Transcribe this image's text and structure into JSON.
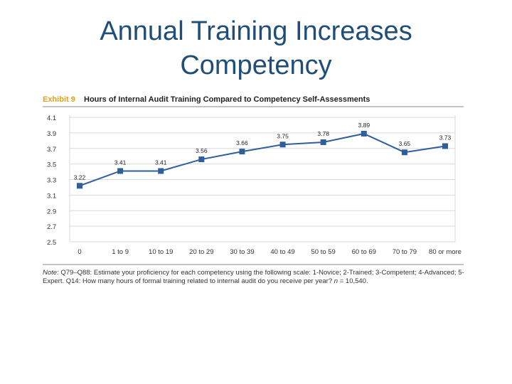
{
  "slide": {
    "title_line1": "Annual Training Increases",
    "title_line2": "Competency"
  },
  "chart_data": {
    "type": "line",
    "exhibit_label": "Exhibit 9",
    "title": "Hours of Internal Audit Training Compared to Competency Self-Assessments",
    "categories": [
      "0",
      "1 to 9",
      "10 to 19",
      "20 to 29",
      "30 to 39",
      "40 to 49",
      "50 to 59",
      "60 to 69",
      "70 to 79",
      "80 or more"
    ],
    "series": [
      {
        "values": [
          3.22,
          3.41,
          3.41,
          3.56,
          3.66,
          3.75,
          3.78,
          3.89,
          3.65,
          3.73
        ]
      }
    ],
    "data_labels": [
      "3.22",
      "3.41",
      "3.41",
      "3.56",
      "3.66",
      "3.75",
      "3.78",
      "3.89",
      "3.65",
      "3.73"
    ],
    "ylim": [
      2.5,
      4.1
    ],
    "yticks": [
      2.5,
      2.7,
      2.9,
      3.1,
      3.3,
      3.5,
      3.7,
      3.9,
      4.1
    ],
    "ytick_labels": [
      "2.5",
      "2.7",
      "2.9",
      "3.1",
      "3.3",
      "3.5",
      "3.7",
      "3.9",
      "4.1"
    ],
    "grid": true,
    "colors": {
      "line": "#2f5f9a",
      "marker": "#2f5f9a",
      "exhibit": "#e0a21a",
      "grid": "#d9d9d9"
    }
  },
  "note": {
    "label": "Note:",
    "text": "Q79–Q88: Estimate your proficiency for each competency using the following scale: 1-Novice; 2-Trained; 3-Competent; 4-Advanced; 5-Expert. Q14: How many hours of formal training related to internal audit do you receive per year?",
    "n_label": "n",
    "n_value": "= 10,540."
  }
}
